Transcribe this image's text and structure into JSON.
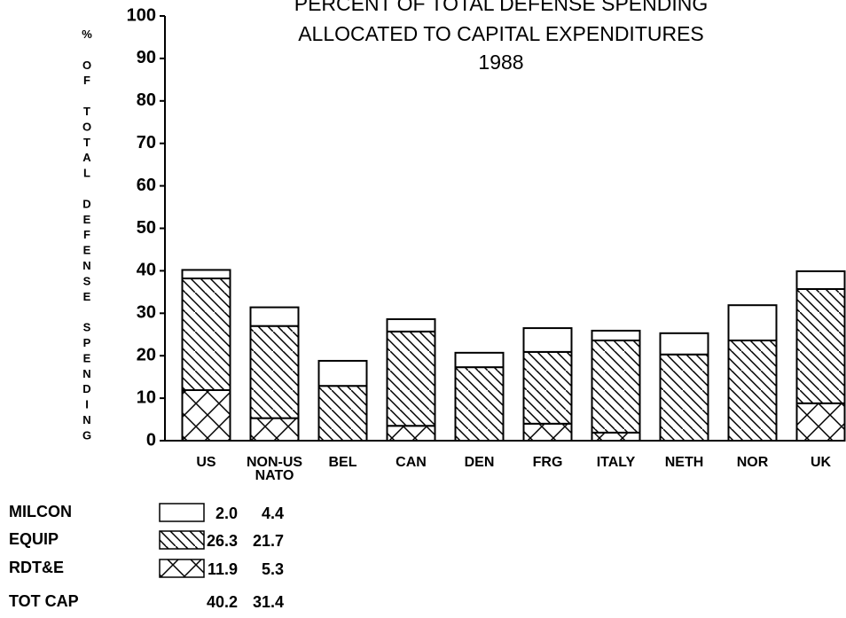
{
  "chart_data": {
    "type": "stacked_bar",
    "title": [
      "PERCENT OF TOTAL DEFENSE SPENDING",
      "ALLOCATED TO CAPITAL EXPENDITURES",
      "1988"
    ],
    "y_label": "% OF TOTAL DEFENSE SPENDING",
    "categories": [
      "US",
      "NON-US NATO",
      "BEL",
      "CAN",
      "DEN",
      "FRG",
      "ITALY",
      "NETH",
      "NOR",
      "UK"
    ],
    "series": [
      {
        "name": "MILCON",
        "color": "#ffffff",
        "hatch": "none",
        "values": [
          2.0,
          4.4,
          5.9,
          2.9,
          3.4,
          5.6,
          2.3,
          5.0,
          8.3,
          4.2
        ],
        "value_labels": [
          "2.0",
          "4.4",
          null,
          null,
          null,
          null,
          null,
          null,
          null,
          null
        ]
      },
      {
        "name": "EQUIP",
        "color": "#ffffff",
        "hatch": "diagonal",
        "values": [
          26.3,
          21.7,
          12.9,
          22.2,
          17.3,
          16.9,
          21.7,
          20.3,
          23.6,
          26.9
        ],
        "value_labels": [
          "26.3",
          "21.7",
          null,
          null,
          null,
          null,
          null,
          null,
          null,
          null
        ]
      },
      {
        "name": "RDT&E",
        "color": "#ffffff",
        "hatch": "cross",
        "values": [
          11.9,
          5.3,
          0,
          3.5,
          0,
          4.0,
          1.9,
          0,
          0,
          8.8
        ],
        "value_labels": [
          "11.9",
          "5.3",
          null,
          null,
          null,
          null,
          null,
          null,
          null,
          null
        ]
      }
    ],
    "totals": {
      "name": "TOT CAP",
      "values": [
        40.2,
        31.4
      ]
    },
    "ylim": [
      0,
      100
    ],
    "yticks": [
      0,
      10,
      20,
      30,
      40,
      50,
      60,
      70,
      80,
      90,
      100
    ],
    "grid": false
  }
}
